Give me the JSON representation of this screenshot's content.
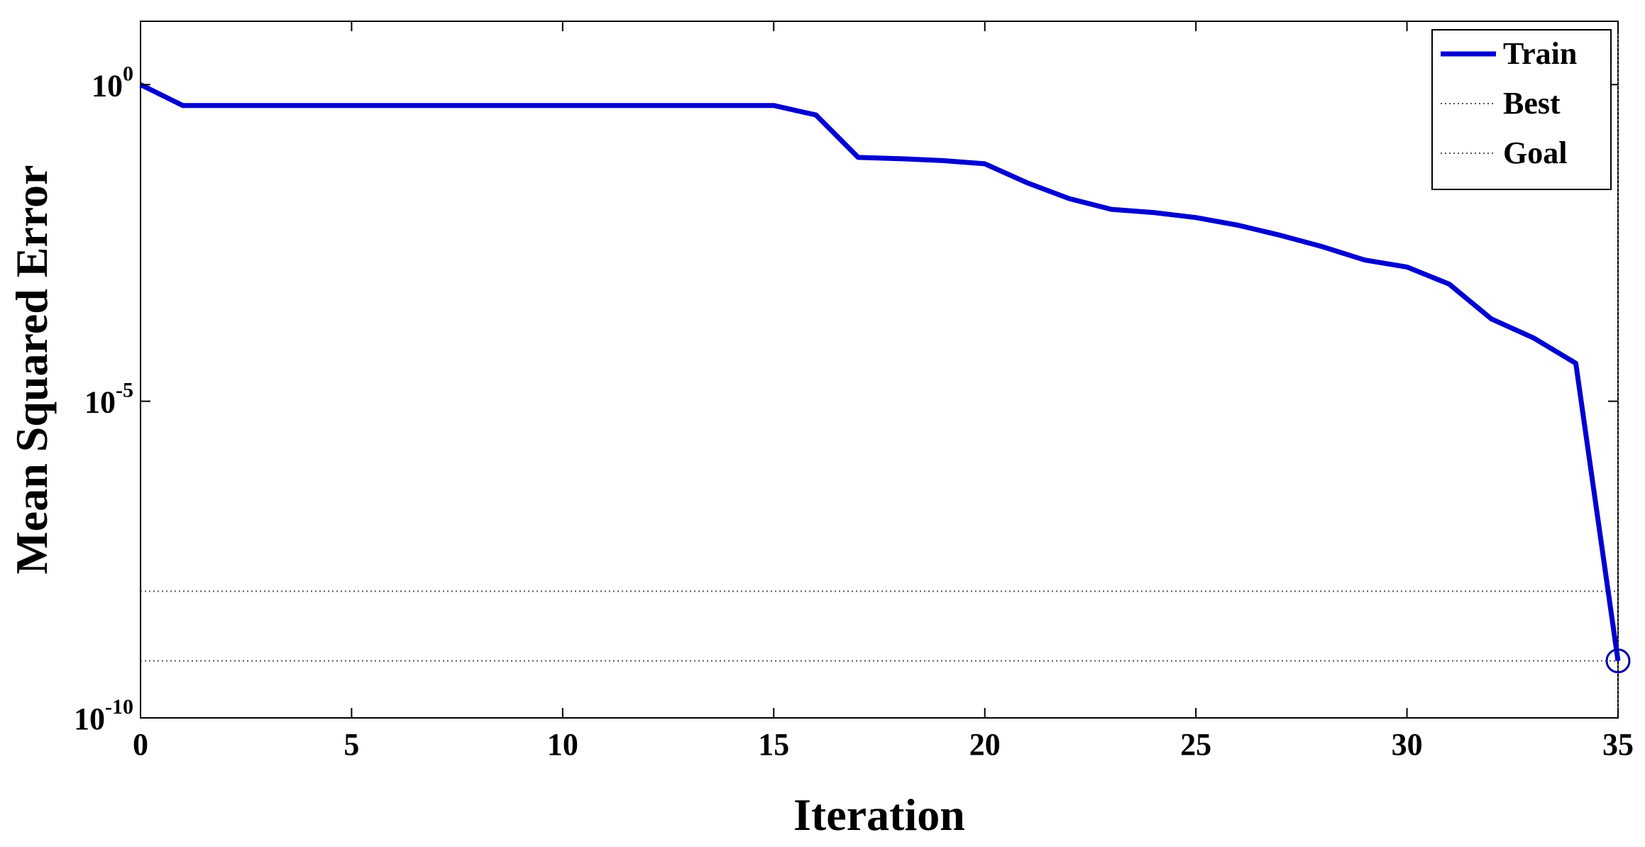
{
  "chart_data": {
    "type": "line",
    "xlabel": "Iteration",
    "ylabel": "Mean Squared Error",
    "yscale": "log",
    "xlim": [
      0,
      35
    ],
    "ylim_exponent": [
      -10,
      1.0
    ],
    "x_ticks": [
      "0",
      "5",
      "10",
      "15",
      "20",
      "25",
      "30",
      "35"
    ],
    "y_ticks": [
      {
        "base": "10",
        "exp": "0",
        "log10": 0
      },
      {
        "base": "10",
        "exp": "-5",
        "log10": -5
      },
      {
        "base": "10",
        "exp": "-10",
        "log10": -10
      }
    ],
    "grid": false,
    "legend_position": "top-right",
    "legend": [
      {
        "label": "Train",
        "style": "solid",
        "color": "#0000d0"
      },
      {
        "label": "Best",
        "style": "dotted",
        "color": "#555555"
      },
      {
        "label": "Goal",
        "style": "dotted",
        "color": "#555555"
      }
    ],
    "series": [
      {
        "name": "Train",
        "color": "#0000d0",
        "x": [
          0,
          1,
          2,
          3,
          4,
          5,
          6,
          7,
          8,
          9,
          10,
          11,
          12,
          13,
          14,
          15,
          16,
          17,
          18,
          19,
          20,
          21,
          22,
          23,
          24,
          25,
          26,
          27,
          28,
          29,
          30,
          31,
          32,
          33,
          34,
          35
        ],
        "log10_mse": [
          0.0,
          -0.33,
          -0.33,
          -0.33,
          -0.33,
          -0.33,
          -0.33,
          -0.33,
          -0.33,
          -0.33,
          -0.33,
          -0.33,
          -0.33,
          -0.33,
          -0.33,
          -0.33,
          -0.48,
          -1.15,
          -1.17,
          -1.2,
          -1.25,
          -1.55,
          -1.8,
          -1.97,
          -2.02,
          -2.1,
          -2.22,
          -2.38,
          -2.56,
          -2.77,
          -2.88,
          -3.15,
          -3.7,
          -4.0,
          -4.4,
          -9.1
        ]
      }
    ],
    "best": {
      "iteration": 35,
      "log10_mse": -9.1
    },
    "goal": {
      "log10_mse": -8.0
    }
  }
}
